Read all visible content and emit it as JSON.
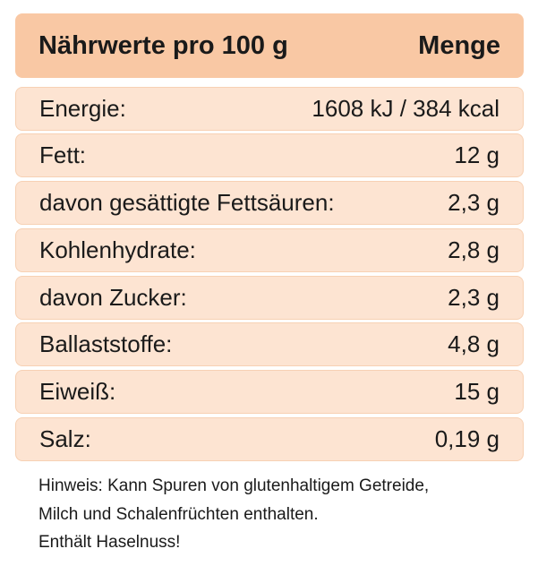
{
  "header": {
    "title": "Nährwerte pro 100 g",
    "amount": "Menge"
  },
  "table": {
    "rows": [
      [
        "Energie:",
        "1608 kJ / 384 kcal"
      ],
      [
        "Fett:",
        "12 g"
      ],
      [
        "davon gesättigte Fettsäuren:",
        "2,3 g"
      ],
      [
        "Kohlenhydrate:",
        "2,8 g"
      ],
      [
        "davon Zucker:",
        "2,3 g"
      ],
      [
        "Ballaststoffe:",
        "4,8 g"
      ],
      [
        "Eiweiß:",
        "15 g"
      ],
      [
        "Salz:",
        "0,19 g"
      ]
    ]
  },
  "note": [
    "Hinweis: Kann Spuren von glutenhaltigem Getreide,",
    "Milch und Schalenfrüchten enthalten.",
    "Enthält Haselnuss!"
  ]
}
